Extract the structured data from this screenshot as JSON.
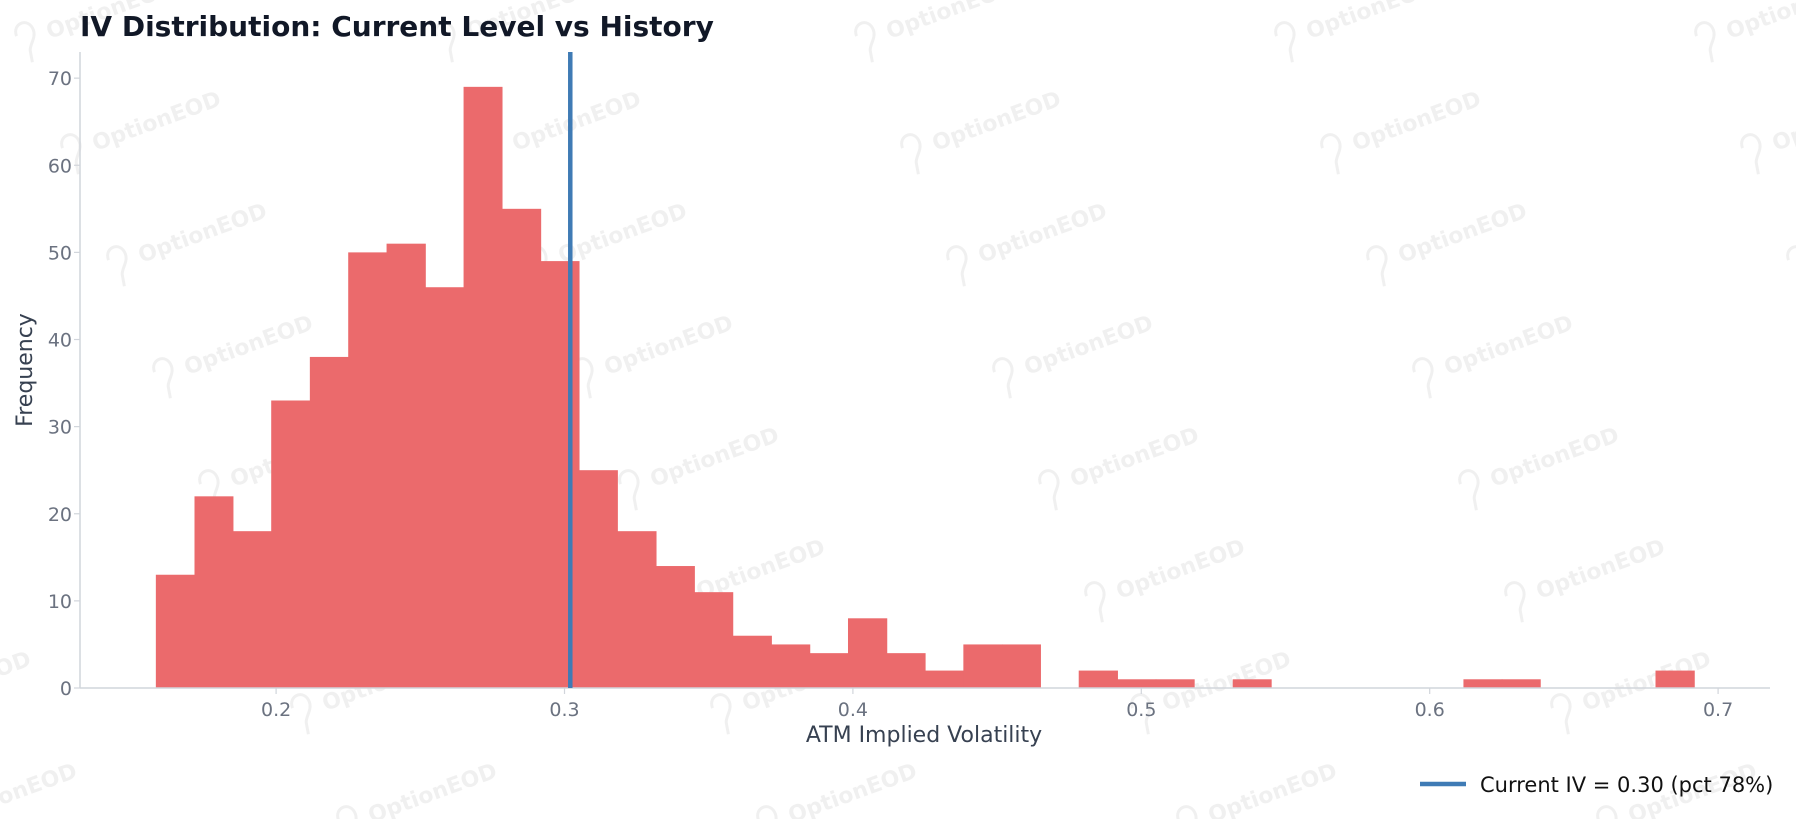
{
  "chart_data": {
    "type": "bar",
    "title": "IV Distribution: Current Level vs History",
    "xlabel": "ATM Implied Volatility",
    "ylabel": "Frequency",
    "xlim": [
      0.132,
      0.718
    ],
    "ylim": [
      0,
      73
    ],
    "xticks": [
      {
        "value": 0.2,
        "label": "0.2"
      },
      {
        "value": 0.3,
        "label": "0.3"
      },
      {
        "value": 0.4,
        "label": "0.4"
      },
      {
        "value": 0.5,
        "label": "0.5"
      },
      {
        "value": 0.6,
        "label": "0.6"
      },
      {
        "value": 0.7,
        "label": "0.7"
      }
    ],
    "yticks": [
      {
        "value": 0,
        "label": "0"
      },
      {
        "value": 10,
        "label": "10"
      },
      {
        "value": 20,
        "label": "20"
      },
      {
        "value": 30,
        "label": "30"
      },
      {
        "value": 40,
        "label": "40"
      },
      {
        "value": 50,
        "label": "50"
      },
      {
        "value": 60,
        "label": "60"
      },
      {
        "value": 70,
        "label": "70"
      }
    ],
    "bin_edges": [
      0.1583,
      0.1717,
      0.185,
      0.1983,
      0.2117,
      0.225,
      0.2383,
      0.2517,
      0.265,
      0.2783,
      0.2917,
      0.305,
      0.3183,
      0.3317,
      0.345,
      0.3583,
      0.3717,
      0.385,
      0.3983,
      0.4117,
      0.425,
      0.4383,
      0.4517,
      0.465,
      0.4783,
      0.4917,
      0.505,
      0.5183,
      0.5317,
      0.545,
      0.5583,
      0.5717,
      0.585,
      0.5983,
      0.6117,
      0.625,
      0.6383,
      0.6517,
      0.665,
      0.6783,
      0.6917
    ],
    "counts": [
      13,
      22,
      18,
      33,
      38,
      50,
      51,
      46,
      69,
      55,
      49,
      25,
      18,
      14,
      11,
      6,
      5,
      4,
      8,
      4,
      2,
      5,
      5,
      0,
      2,
      1,
      1,
      0,
      1,
      0,
      0,
      0,
      0,
      0,
      1,
      1,
      0,
      0,
      0,
      2
    ],
    "bar_color": "#eb6a6c",
    "current_iv": {
      "value": 0.302,
      "label": "Current IV = 0.30 (pct 78%)",
      "color": "#3f7bb5"
    },
    "legend_position": "bottom-right",
    "grid": false,
    "watermark_text": "OptionEOD"
  }
}
